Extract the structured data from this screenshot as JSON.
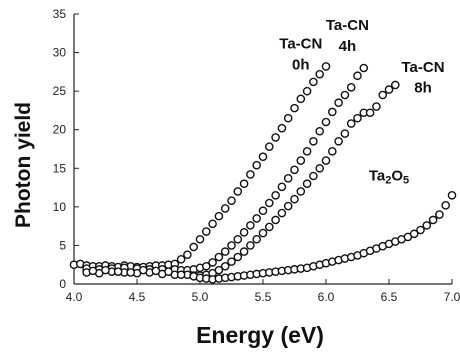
{
  "chart_data": {
    "type": "scatter",
    "xlabel": "Energy (eV)",
    "ylabel": "Photon yield",
    "xlim": [
      4.0,
      7.0
    ],
    "ylim": [
      0,
      35
    ],
    "xticks": [
      "4.0",
      "4.5",
      "5.0",
      "5.5",
      "6.0",
      "6.5",
      "7.0"
    ],
    "yticks": [
      "0",
      "5",
      "10",
      "15",
      "20",
      "25",
      "30",
      "35"
    ],
    "grid": false,
    "marker": "open-circle",
    "marker_color": "#111111",
    "series": [
      {
        "name": "Ta-CN 0h",
        "x": [
          4.0,
          4.05,
          4.1,
          4.15,
          4.2,
          4.25,
          4.3,
          4.35,
          4.4,
          4.45,
          4.5,
          4.55,
          4.6,
          4.65,
          4.7,
          4.75,
          4.8,
          4.85,
          4.9,
          4.95,
          5.0,
          5.05,
          5.1,
          5.15,
          5.2,
          5.25,
          5.3,
          5.35,
          5.4,
          5.45,
          5.5,
          5.55,
          5.6,
          5.65,
          5.7,
          5.75,
          5.8,
          5.85,
          5.9,
          5.95,
          6.0
        ],
        "y": [
          2.5,
          2.6,
          2.4,
          2.3,
          2.3,
          2.4,
          2.3,
          2.2,
          2.4,
          2.3,
          2.2,
          2.2,
          2.3,
          2.4,
          2.4,
          2.5,
          2.6,
          3.2,
          3.8,
          4.8,
          5.8,
          6.8,
          7.8,
          8.8,
          9.8,
          10.8,
          12.0,
          13.0,
          14.2,
          15.4,
          16.5,
          17.8,
          19.0,
          20.2,
          21.5,
          22.8,
          24.0,
          25.0,
          26.2,
          27.2,
          28.2
        ]
      },
      {
        "name": "Ta-CN 4h",
        "x": [
          4.1,
          4.2,
          4.3,
          4.4,
          4.5,
          4.6,
          4.7,
          4.8,
          4.85,
          4.9,
          4.95,
          5.0,
          5.05,
          5.1,
          5.15,
          5.2,
          5.25,
          5.3,
          5.35,
          5.4,
          5.45,
          5.5,
          5.55,
          5.6,
          5.65,
          5.7,
          5.75,
          5.8,
          5.85,
          5.9,
          5.95,
          6.0,
          6.05,
          6.1,
          6.15,
          6.2,
          6.25,
          6.3
        ],
        "y": [
          2.0,
          1.9,
          2.0,
          2.1,
          2.0,
          1.9,
          1.9,
          1.9,
          1.8,
          1.8,
          1.9,
          2.1,
          2.3,
          2.8,
          3.5,
          4.2,
          5.0,
          5.8,
          6.7,
          7.6,
          8.5,
          9.5,
          10.5,
          11.5,
          12.6,
          13.7,
          14.8,
          16.0,
          17.2,
          18.5,
          19.8,
          21.0,
          22.3,
          23.5,
          24.5,
          25.5,
          27.0,
          28.0
        ]
      },
      {
        "name": "Ta-CN 8h",
        "x": [
          4.1,
          4.2,
          4.3,
          4.4,
          4.5,
          4.6,
          4.7,
          4.8,
          4.9,
          4.95,
          5.0,
          5.05,
          5.1,
          5.15,
          5.2,
          5.25,
          5.3,
          5.35,
          5.4,
          5.45,
          5.5,
          5.55,
          5.6,
          5.65,
          5.7,
          5.75,
          5.8,
          5.85,
          5.9,
          5.95,
          6.0,
          6.05,
          6.1,
          6.15,
          6.2,
          6.25,
          6.3,
          6.35,
          6.4,
          6.45,
          6.5,
          6.55
        ],
        "y": [
          1.5,
          1.4,
          1.6,
          1.5,
          1.4,
          1.5,
          1.3,
          1.2,
          1.2,
          1.1,
          1.1,
          1.2,
          1.4,
          1.8,
          2.3,
          2.9,
          3.5,
          4.2,
          5.0,
          5.8,
          6.6,
          7.4,
          8.3,
          9.2,
          10.1,
          11.0,
          12.0,
          13.0,
          14.0,
          15.0,
          16.0,
          17.2,
          18.5,
          19.5,
          20.8,
          21.5,
          22.2,
          22.2,
          23.0,
          24.5,
          25.2,
          25.8
        ]
      },
      {
        "name": "Ta2O5",
        "x": [
          4.15,
          4.25,
          4.35,
          4.45,
          4.55,
          4.65,
          4.75,
          4.85,
          4.95,
          5.0,
          5.05,
          5.1,
          5.15,
          5.2,
          5.25,
          5.3,
          5.35,
          5.4,
          5.45,
          5.5,
          5.55,
          5.6,
          5.65,
          5.7,
          5.75,
          5.8,
          5.85,
          5.9,
          5.95,
          6.0,
          6.05,
          6.1,
          6.15,
          6.2,
          6.25,
          6.3,
          6.35,
          6.4,
          6.45,
          6.5,
          6.55,
          6.6,
          6.65,
          6.7,
          6.75,
          6.8,
          6.85,
          6.9,
          6.95,
          7.0
        ],
        "y": [
          1.7,
          1.8,
          1.6,
          1.5,
          1.8,
          1.7,
          1.6,
          1.2,
          1.0,
          0.8,
          0.7,
          0.6,
          0.7,
          0.8,
          0.9,
          1.0,
          1.1,
          1.2,
          1.3,
          1.4,
          1.5,
          1.6,
          1.7,
          1.8,
          1.9,
          2.0,
          2.1,
          2.3,
          2.5,
          2.7,
          2.9,
          3.1,
          3.3,
          3.5,
          3.7,
          4.0,
          4.3,
          4.6,
          4.9,
          5.2,
          5.5,
          5.8,
          6.1,
          6.5,
          7.0,
          7.6,
          8.3,
          9.0,
          10.2,
          11.5
        ]
      }
    ],
    "annotations": [
      {
        "text": "Ta-CN",
        "x": 5.8,
        "y": 30.5
      },
      {
        "text": "0h",
        "x": 5.8,
        "y": 27.8
      },
      {
        "text": "Ta-CN",
        "x": 6.17,
        "y": 32.9
      },
      {
        "text": "4h",
        "x": 6.17,
        "y": 30.2
      },
      {
        "text": "Ta-CN",
        "x": 6.77,
        "y": 27.5
      },
      {
        "text": "8h",
        "x": 6.77,
        "y": 24.8
      },
      {
        "text": "Ta",
        "sub": "2",
        "tail": "O",
        "sub2": "5",
        "x": 6.5,
        "y": 13.4
      }
    ]
  }
}
